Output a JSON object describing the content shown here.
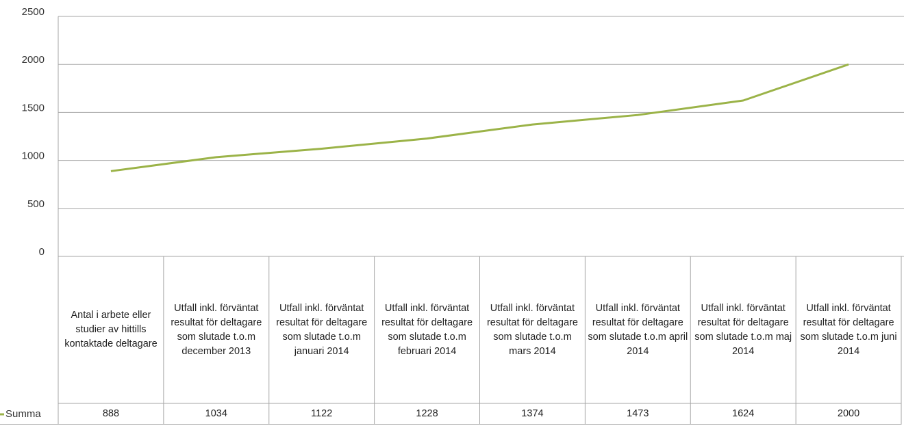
{
  "chart_data": {
    "type": "line",
    "categories": [
      "Antal i arbete eller studier av hittills kontaktade deltagare",
      "Utfall inkl. förväntat resultat för deltagare som slutade t.o.m december 2013",
      "Utfall inkl. förväntat resultat för deltagare som slutade t.o.m januari 2014",
      "Utfall inkl. förväntat resultat för deltagare som slutade t.o.m februari 2014",
      "Utfall inkl. förväntat resultat för deltagare som slutade t.o.m mars 2014",
      "Utfall inkl. förväntat resultat för deltagare som slutade t.o.m april 2014",
      "Utfall inkl. förväntat resultat för deltagare som slutade t.o.m maj 2014",
      "Utfall inkl. förväntat resultat för deltagare som slutade t.o.m juni 2014"
    ],
    "series": [
      {
        "name": "Summa",
        "color": "#9bb348",
        "values": [
          888,
          1034,
          1122,
          1228,
          1374,
          1473,
          1624,
          2000
        ]
      }
    ],
    "ylim": [
      0,
      2500
    ],
    "yticks": [
      0,
      500,
      1000,
      1500,
      2000,
      2500
    ],
    "grid": true
  }
}
